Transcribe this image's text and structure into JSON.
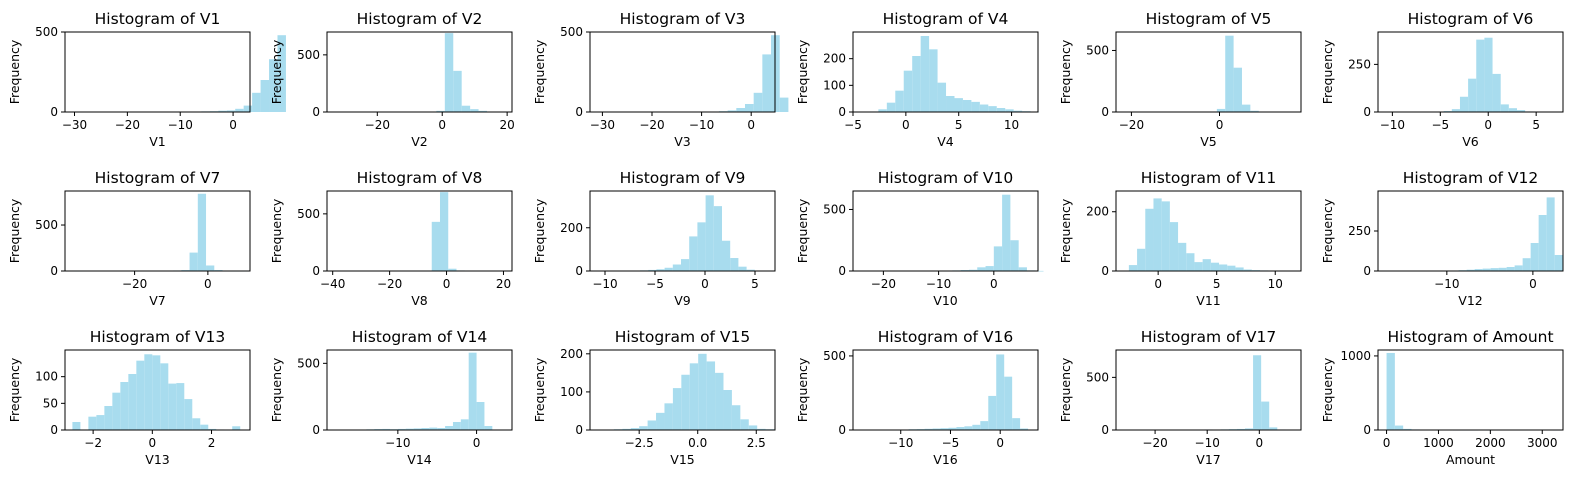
{
  "style": {
    "bar_color": "#a8dcee",
    "ylabel": "Frequency"
  },
  "chart_data": [
    {
      "type": "bar",
      "title": "Histogram of V1",
      "xlabel": "V1",
      "ylabel": "Frequency",
      "xlim": [
        -31.8,
        3.2
      ],
      "ylim": [
        0,
        500
      ],
      "xticks": [
        -30,
        -20,
        -10,
        0
      ],
      "xtick_labels": [
        "−30",
        "−20",
        "−10",
        "0"
      ],
      "yticks": [
        0,
        500
      ],
      "ytick_labels": [
        "0",
        "500"
      ],
      "bins": {
        "start": -30.0,
        "width": 1.6,
        "counts": [
          1,
          0,
          0,
          0,
          0,
          0,
          0,
          0,
          0,
          1,
          0,
          2,
          1,
          1,
          2,
          4,
          5,
          8,
          10,
          20,
          40,
          120,
          200,
          330,
          480
        ]
      }
    },
    {
      "type": "bar",
      "title": "Histogram of V2",
      "xlabel": "V2",
      "ylabel": "Frequency",
      "xlim": [
        -35.5,
        21.5
      ],
      "ylim": [
        0,
        700
      ],
      "xticks": [
        -20,
        0,
        20
      ],
      "xtick_labels": [
        "−20",
        "0",
        "20"
      ],
      "yticks": [
        0,
        500
      ],
      "ytick_labels": [
        "0",
        "500"
      ],
      "bins": {
        "start": -33.0,
        "width": 2.6,
        "counts": [
          1,
          0,
          0,
          0,
          0,
          0,
          0,
          0,
          1,
          1,
          2,
          4,
          10,
          690,
          360,
          55,
          25,
          10,
          3,
          1
        ]
      }
    },
    {
      "type": "bar",
      "title": "Histogram of V3",
      "xlabel": "V3",
      "ylabel": "Frequency",
      "xlim": [
        -32.5,
        4.8
      ],
      "ylim": [
        0,
        500
      ],
      "xticks": [
        -30,
        -20,
        -10,
        0
      ],
      "xtick_labels": [
        "−30",
        "−20",
        "−10",
        "0"
      ],
      "yticks": [
        0,
        500
      ],
      "ytick_labels": [
        "0",
        "500"
      ],
      "bins": {
        "start": -31.0,
        "width": 1.75,
        "counts": [
          1,
          0,
          0,
          0,
          0,
          0,
          0,
          0,
          0,
          1,
          1,
          1,
          2,
          3,
          5,
          10,
          25,
          50,
          120,
          360,
          480,
          90
        ]
      }
    },
    {
      "type": "bar",
      "title": "Histogram of V4",
      "xlabel": "V4",
      "ylabel": "Frequency",
      "xlim": [
        -5.0,
        12.5
      ],
      "ylim": [
        0,
        300
      ],
      "xticks": [
        -5,
        0,
        5,
        10
      ],
      "xtick_labels": [
        "−5",
        "0",
        "5",
        "10"
      ],
      "yticks": [
        0,
        100,
        200
      ],
      "ytick_labels": [
        "0",
        "100",
        "200"
      ],
      "bins": {
        "start": -4.2,
        "width": 0.8,
        "counts": [
          1,
          2,
          10,
          35,
          80,
          155,
          210,
          285,
          235,
          110,
          60,
          52,
          45,
          38,
          28,
          22,
          15,
          10,
          5,
          3,
          1
        ]
      }
    },
    {
      "type": "bar",
      "title": "Histogram of V5",
      "xlabel": "V5",
      "ylabel": "Frequency",
      "xlim": [
        -23.5,
        18.5
      ],
      "ylim": [
        0,
        650
      ],
      "xticks": [
        -20,
        0
      ],
      "xtick_labels": [
        "−20",
        "0"
      ],
      "yticks": [
        0,
        500
      ],
      "ytick_labels": [
        "0",
        "500"
      ],
      "bins": {
        "start": -21.5,
        "width": 1.9,
        "counts": [
          1,
          0,
          0,
          0,
          0,
          0,
          0,
          0,
          0,
          1,
          3,
          25,
          620,
          360,
          60,
          10,
          2,
          1,
          0,
          0,
          1
        ]
      }
    },
    {
      "type": "bar",
      "title": "Histogram of V6",
      "xlabel": "V6",
      "ylabel": "Frequency",
      "xlim": [
        -11.5,
        7.8
      ],
      "ylim": [
        0,
        420
      ],
      "xticks": [
        -10,
        -5,
        0,
        5
      ],
      "xtick_labels": [
        "−10",
        "−5",
        "0",
        "5"
      ],
      "yticks": [
        0,
        250
      ],
      "ytick_labels": [
        "0",
        "250"
      ],
      "bins": {
        "start": -10.6,
        "width": 0.85,
        "counts": [
          1,
          0,
          0,
          0,
          0,
          1,
          2,
          5,
          15,
          80,
          175,
          380,
          390,
          200,
          40,
          20,
          10,
          3,
          2,
          1,
          1
        ]
      }
    },
    {
      "type": "bar",
      "title": "Histogram of V7",
      "xlabel": "V7",
      "ylabel": "Frequency",
      "xlim": [
        -39.0,
        11.5
      ],
      "ylim": [
        0,
        870
      ],
      "xticks": [
        -20,
        0
      ],
      "xtick_labels": [
        "−20",
        "0"
      ],
      "yticks": [
        0,
        500
      ],
      "ytick_labels": [
        "0",
        "500"
      ],
      "bins": {
        "start": -36.5,
        "width": 2.25,
        "counts": [
          1,
          0,
          0,
          0,
          0,
          0,
          0,
          1,
          2,
          2,
          4,
          5,
          6,
          10,
          200,
          840,
          60,
          10,
          3,
          1,
          1
        ]
      }
    },
    {
      "type": "bar",
      "title": "Histogram of V8",
      "xlabel": "V8",
      "ylabel": "Frequency",
      "xlim": [
        -42.0,
        23.0
      ],
      "ylim": [
        0,
        700
      ],
      "xticks": [
        -40,
        -20,
        0,
        20
      ],
      "xtick_labels": [
        "−40",
        "−20",
        "0",
        "20"
      ],
      "yticks": [
        0,
        500
      ],
      "ytick_labels": [
        "0",
        "500"
      ],
      "bins": {
        "start": -40.0,
        "width": 2.9,
        "counts": [
          1,
          0,
          0,
          0,
          0,
          0,
          0,
          0,
          0,
          0,
          2,
          3,
          430,
          690,
          20,
          5,
          2,
          1,
          0,
          1,
          1
        ]
      }
    },
    {
      "type": "bar",
      "title": "Histogram of V9",
      "xlabel": "V9",
      "ylabel": "Frequency",
      "xlim": [
        -11.5,
        7.0
      ],
      "ylim": [
        0,
        370
      ],
      "xticks": [
        -10,
        -5,
        0,
        5
      ],
      "xtick_labels": [
        "−10",
        "−5",
        "0",
        "5"
      ],
      "yticks": [
        0,
        200
      ],
      "ytick_labels": [
        "0",
        "200"
      ],
      "bins": {
        "start": -10.6,
        "width": 0.82,
        "counts": [
          1,
          0,
          0,
          1,
          2,
          3,
          5,
          8,
          15,
          30,
          55,
          160,
          225,
          350,
          300,
          140,
          60,
          20,
          6,
          2,
          1
        ]
      }
    },
    {
      "type": "bar",
      "title": "Histogram of V10",
      "xlabel": "V10",
      "ylabel": "Frequency",
      "xlim": [
        -25.5,
        8.0
      ],
      "ylim": [
        0,
        650
      ],
      "xticks": [
        -20,
        -10,
        0
      ],
      "xtick_labels": [
        "−20",
        "−10",
        "0"
      ],
      "yticks": [
        0,
        500
      ],
      "ytick_labels": [
        "0",
        "500"
      ],
      "bins": {
        "start": -24.0,
        "width": 1.5,
        "counts": [
          1,
          0,
          0,
          0,
          0,
          1,
          0,
          1,
          2,
          2,
          3,
          5,
          8,
          10,
          30,
          40,
          200,
          620,
          250,
          30,
          5,
          1
        ]
      }
    },
    {
      "type": "bar",
      "title": "Histogram of V11",
      "xlabel": "V11",
      "ylabel": "Frequency",
      "xlim": [
        -3.6,
        12.2
      ],
      "ylim": [
        0,
        270
      ],
      "xticks": [
        0,
        5,
        10
      ],
      "xtick_labels": [
        "0",
        "5",
        "10"
      ],
      "yticks": [
        0,
        200
      ],
      "ytick_labels": [
        "0",
        "200"
      ],
      "bins": {
        "start": -2.5,
        "width": 0.7,
        "counts": [
          20,
          75,
          210,
          245,
          235,
          165,
          95,
          60,
          30,
          40,
          28,
          22,
          18,
          12,
          5,
          3,
          2,
          1,
          1,
          0,
          1
        ]
      }
    },
    {
      "type": "bar",
      "title": "Histogram of V12",
      "xlabel": "V12",
      "ylabel": "Frequency",
      "xlim": [
        -18.0,
        3.5
      ],
      "ylim": [
        0,
        500
      ],
      "xticks": [
        -10,
        0
      ],
      "xtick_labels": [
        "−10",
        "0"
      ],
      "yticks": [
        0,
        250
      ],
      "ytick_labels": [
        "0",
        "250"
      ],
      "bins": {
        "start": -17.0,
        "width": 0.93,
        "counts": [
          1,
          0,
          0,
          0,
          1,
          1,
          1,
          2,
          3,
          5,
          8,
          12,
          15,
          18,
          20,
          25,
          35,
          80,
          175,
          350,
          460,
          100
        ]
      }
    },
    {
      "type": "bar",
      "title": "Histogram of V13",
      "xlabel": "V13",
      "ylabel": "Frequency",
      "xlim": [
        -2.95,
        3.3
      ],
      "ylim": [
        0,
        150
      ],
      "xticks": [
        -2,
        0,
        2
      ],
      "xtick_labels": [
        "−2",
        "0",
        "2"
      ],
      "yticks": [
        0,
        50,
        100
      ],
      "ytick_labels": [
        "0",
        "50",
        "100"
      ],
      "bins": {
        "start": -2.7,
        "width": 0.27,
        "counts": [
          15,
          0,
          25,
          28,
          45,
          70,
          90,
          105,
          130,
          142,
          140,
          125,
          87,
          88,
          58,
          22,
          10,
          2,
          1,
          0,
          7
        ]
      }
    },
    {
      "type": "bar",
      "title": "Histogram of V14",
      "xlabel": "V14",
      "ylabel": "Frequency",
      "xlim": [
        -19.0,
        4.5
      ],
      "ylim": [
        0,
        600
      ],
      "xticks": [
        -10,
        0
      ],
      "xtick_labels": [
        "−10",
        "0"
      ],
      "yticks": [
        0,
        500
      ],
      "ytick_labels": [
        "0",
        "500"
      ],
      "bins": {
        "start": -18.0,
        "width": 1.0,
        "counts": [
          1,
          0,
          0,
          0,
          5,
          7,
          8,
          6,
          8,
          10,
          12,
          15,
          18,
          15,
          30,
          60,
          80,
          580,
          210,
          30,
          2
        ]
      }
    },
    {
      "type": "bar",
      "title": "Histogram of V15",
      "xlabel": "V15",
      "ylabel": "Frequency",
      "xlim": [
        -4.6,
        3.3
      ],
      "ylim": [
        0,
        210
      ],
      "xticks": [
        -2.5,
        0.0,
        2.5
      ],
      "xtick_labels": [
        "−2.5",
        "0.0",
        "2.5"
      ],
      "yticks": [
        0,
        100,
        200
      ],
      "ytick_labels": [
        "0",
        "100",
        "200"
      ],
      "bins": {
        "start": -4.3,
        "width": 0.36,
        "counts": [
          1,
          1,
          2,
          3,
          5,
          10,
          25,
          45,
          70,
          110,
          145,
          175,
          200,
          180,
          150,
          105,
          65,
          28,
          12,
          3,
          2
        ]
      }
    },
    {
      "type": "bar",
      "title": "Histogram of V16",
      "xlabel": "V16",
      "ylabel": "Frequency",
      "xlim": [
        -14.8,
        3.8
      ],
      "ylim": [
        0,
        540
      ],
      "xticks": [
        -10,
        -5,
        0
      ],
      "xtick_labels": [
        "−10",
        "−5",
        "0"
      ],
      "yticks": [
        0,
        500
      ],
      "ytick_labels": [
        "0",
        "500"
      ],
      "bins": {
        "start": -14.0,
        "width": 0.8,
        "counts": [
          1,
          0,
          0,
          0,
          2,
          3,
          5,
          6,
          8,
          10,
          12,
          15,
          20,
          25,
          35,
          60,
          230,
          510,
          360,
          80,
          10,
          2
        ]
      }
    },
    {
      "type": "bar",
      "title": "Histogram of V17",
      "xlabel": "V17",
      "ylabel": "Frequency",
      "xlim": [
        -27.5,
        8.0
      ],
      "ylim": [
        0,
        760
      ],
      "xticks": [
        -20,
        -10,
        0
      ],
      "xtick_labels": [
        "−20",
        "−10",
        "0"
      ],
      "yticks": [
        0,
        500
      ],
      "ytick_labels": [
        "0",
        "500"
      ],
      "bins": {
        "start": -26.0,
        "width": 1.55,
        "counts": [
          1,
          0,
          0,
          0,
          0,
          1,
          1,
          2,
          1,
          3,
          5,
          2,
          6,
          8,
          10,
          15,
          710,
          270,
          25,
          5,
          2,
          1
        ]
      }
    },
    {
      "type": "bar",
      "title": "Histogram of Amount",
      "xlabel": "Amount",
      "ylabel": "Frequency",
      "xlim": [
        -165,
        3400
      ],
      "ylim": [
        0,
        1080
      ],
      "xticks": [
        0,
        1000,
        2000,
        3000
      ],
      "xtick_labels": [
        "0",
        "1000",
        "2000",
        "3000"
      ],
      "yticks": [
        0,
        1000
      ],
      "ytick_labels": [
        "0",
        "1000"
      ],
      "bins": {
        "start": 0,
        "width": 160,
        "counts": [
          1040,
          60,
          15,
          8,
          5,
          3,
          2,
          2,
          1,
          1,
          1,
          0,
          1,
          0,
          0,
          0,
          0,
          0,
          0,
          0,
          1
        ]
      }
    }
  ]
}
